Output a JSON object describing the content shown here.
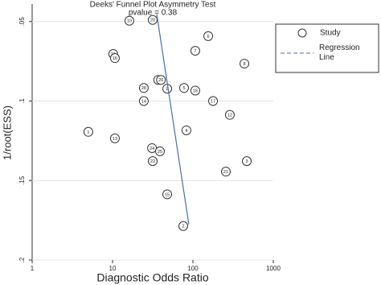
{
  "chart_data": {
    "type": "scatter",
    "title": "Deeks' Funnel Plot Asymmetry Test",
    "subtitle": "pvalue =  0.38",
    "x_label": "Diagnostic Odds Ratio",
    "y_label": "1/root(ESS)",
    "xlim": [
      1,
      1000
    ],
    "xticks": [
      1,
      10,
      100,
      1000
    ],
    "log_x": true,
    "ylim": [
      0.039,
      0.2
    ],
    "y_inverted": true,
    "yticks": [
      {
        "value": 0.05,
        "label": ".05"
      },
      {
        "value": 0.1,
        "label": ".1"
      },
      {
        "value": 0.15,
        "label": ".15"
      },
      {
        "value": 0.2,
        "label": ".2"
      }
    ],
    "grid": true,
    "series": [
      {
        "name": "Study",
        "type": "scatter",
        "color": "#333333",
        "x": [
          16.2,
          31.6,
          155,
          107,
          437,
          10.2,
          10.7,
          37,
          40,
          47.9,
          77.6,
          107,
          24.5,
          24.5,
          178,
          288,
          5.0,
          83,
          10.7,
          31,
          38.9,
          31.6,
          468,
          257,
          47.9,
          75.9
        ],
        "values": [
          0.0495,
          0.049,
          0.0592,
          0.0684,
          0.0765,
          0.0704,
          0.073,
          0.0867,
          0.0867,
          0.0923,
          0.0918,
          0.0934,
          0.0918,
          0.1,
          0.1,
          0.1087,
          0.1194,
          0.1184,
          0.1235,
          0.1296,
          0.1316,
          0.1378,
          0.1378,
          0.1444,
          0.1587,
          0.1786
        ],
        "labels": [
          "10",
          "20",
          "6",
          "7",
          "8",
          "19",
          "16",
          "11",
          "26",
          "9",
          "5",
          "18",
          "28",
          "14",
          "17",
          "12",
          "1",
          "4",
          "13",
          "24",
          "25",
          "22",
          "3",
          "21",
          "15",
          "2"
        ]
      },
      {
        "name": "Regression Line",
        "type": "line",
        "color": "#4a6fa5",
        "x": [
          35.5,
          89
        ],
        "values": [
          0.0454,
          0.1776
        ]
      }
    ]
  }
}
